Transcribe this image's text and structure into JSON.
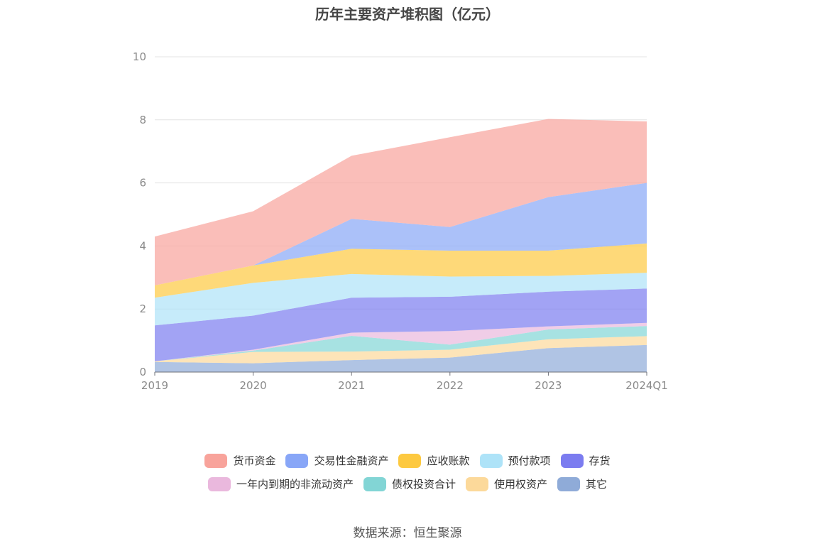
{
  "chart_data": {
    "type": "area",
    "stacked": true,
    "title": "历年主要资产堆积图（亿元）",
    "categories": [
      "2019",
      "2020",
      "2021",
      "2022",
      "2023",
      "2024Q1"
    ],
    "ylim": [
      0,
      10
    ],
    "yticks": [
      0,
      2,
      4,
      6,
      8,
      10
    ],
    "grid": true,
    "legend_position": "bottom",
    "series": [
      {
        "name": "其它",
        "color": "#8fabd8",
        "values": [
          0.32,
          0.28,
          0.38,
          0.46,
          0.76,
          0.86
        ]
      },
      {
        "name": "使用权资产",
        "color": "#fcd99a",
        "values": [
          0.02,
          0.36,
          0.27,
          0.25,
          0.28,
          0.28
        ]
      },
      {
        "name": "债权投资合计",
        "color": "#82d5d5",
        "values": [
          0.0,
          0.04,
          0.5,
          0.16,
          0.31,
          0.32
        ]
      },
      {
        "name": "一年内到期的非流动资产",
        "color": "#eab8dd",
        "values": [
          0.0,
          0.03,
          0.1,
          0.43,
          0.1,
          0.1
        ]
      },
      {
        "name": "存货",
        "color": "#7b7cf0",
        "values": [
          1.14,
          1.08,
          1.11,
          1.09,
          1.1,
          1.09
        ]
      },
      {
        "name": "预付款项",
        "color": "#aee3f8",
        "values": [
          0.88,
          1.04,
          0.75,
          0.64,
          0.5,
          0.5
        ]
      },
      {
        "name": "应收账款",
        "color": "#fdc940",
        "values": [
          0.39,
          0.55,
          0.8,
          0.82,
          0.8,
          0.93
        ]
      },
      {
        "name": "交易性金融资产",
        "color": "#88a6f7",
        "values": [
          0.0,
          0.0,
          0.95,
          0.75,
          1.7,
          1.92
        ]
      },
      {
        "name": "货币资金",
        "color": "#f8a39b",
        "values": [
          1.55,
          1.72,
          2.0,
          2.85,
          2.48,
          1.95
        ]
      }
    ]
  },
  "legend": {
    "rows": [
      [
        {
          "name": "货币资金",
          "color": "#f8a39b"
        },
        {
          "name": "交易性金融资产",
          "color": "#88a6f7"
        },
        {
          "name": "应收账款",
          "color": "#fdc940"
        },
        {
          "name": "预付款项",
          "color": "#aee3f8"
        },
        {
          "name": "存货",
          "color": "#7b7cf0"
        }
      ],
      [
        {
          "name": "一年内到期的非流动资产",
          "color": "#eab8dd"
        },
        {
          "name": "债权投资合计",
          "color": "#82d5d5"
        },
        {
          "name": "使用权资产",
          "color": "#fcd99a"
        },
        {
          "name": "其它",
          "color": "#8fabd8"
        }
      ]
    ]
  },
  "source": "数据来源：恒生聚源"
}
